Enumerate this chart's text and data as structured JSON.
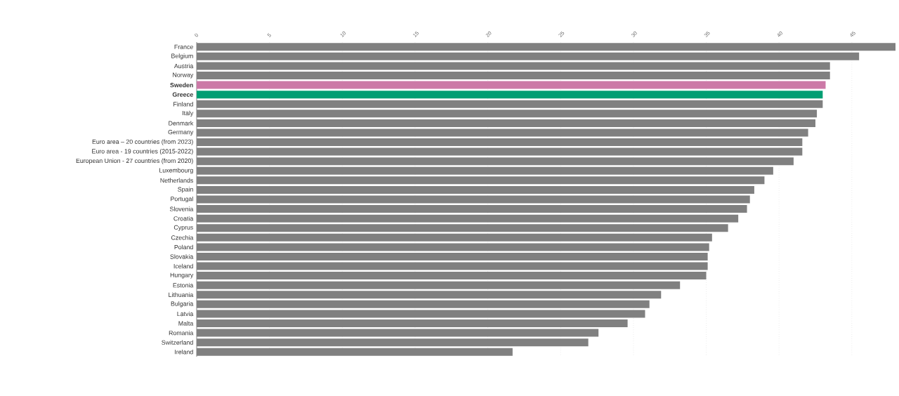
{
  "chart_data": {
    "type": "bar",
    "orientation": "horizontal",
    "categories": [
      "France",
      "Belgium",
      "Austria",
      "Norway",
      "Sweden",
      "Greece",
      "Finland",
      "Italy",
      "Denmark",
      "Germany",
      "Euro area – 20 countries (from 2023)",
      "Euro area - 19 countries  (2015-2022)",
      "European Union - 27 countries (from 2020)",
      "Luxembourg",
      "Netherlands",
      "Spain",
      "Portugal",
      "Slovenia",
      "Croatia",
      "Cyprus",
      "Czechia",
      "Poland",
      "Slovakia",
      "Iceland",
      "Hungary",
      "Estonia",
      "Lithuania",
      "Bulgaria",
      "Latvia",
      "Malta",
      "Romania",
      "Switzerland",
      "Ireland"
    ],
    "values": [
      48.0,
      45.5,
      43.5,
      43.5,
      43.2,
      43.0,
      43.0,
      42.6,
      42.5,
      42.0,
      41.6,
      41.6,
      41.0,
      39.6,
      39.0,
      38.3,
      38.0,
      37.8,
      37.2,
      36.5,
      35.4,
      35.2,
      35.1,
      35.1,
      35.0,
      33.2,
      31.9,
      31.1,
      30.8,
      29.6,
      27.6,
      26.9,
      21.7
    ],
    "color": "#808080",
    "colors": [
      "#808080",
      "#808080",
      "#808080",
      "#808080",
      "#cc79a7",
      "#009e73",
      "#808080",
      "#808080",
      "#808080",
      "#808080",
      "#808080",
      "#808080",
      "#808080",
      "#808080",
      "#808080",
      "#808080",
      "#808080",
      "#808080",
      "#808080",
      "#808080",
      "#808080",
      "#808080",
      "#808080",
      "#808080",
      "#808080",
      "#808080",
      "#808080",
      "#808080",
      "#808080",
      "#808080",
      "#808080",
      "#808080",
      "#808080"
    ],
    "xlim": [
      0,
      48
    ],
    "xticks": [
      0,
      5,
      10,
      15,
      20,
      25,
      30,
      35,
      40,
      45
    ],
    "grid": "x"
  }
}
